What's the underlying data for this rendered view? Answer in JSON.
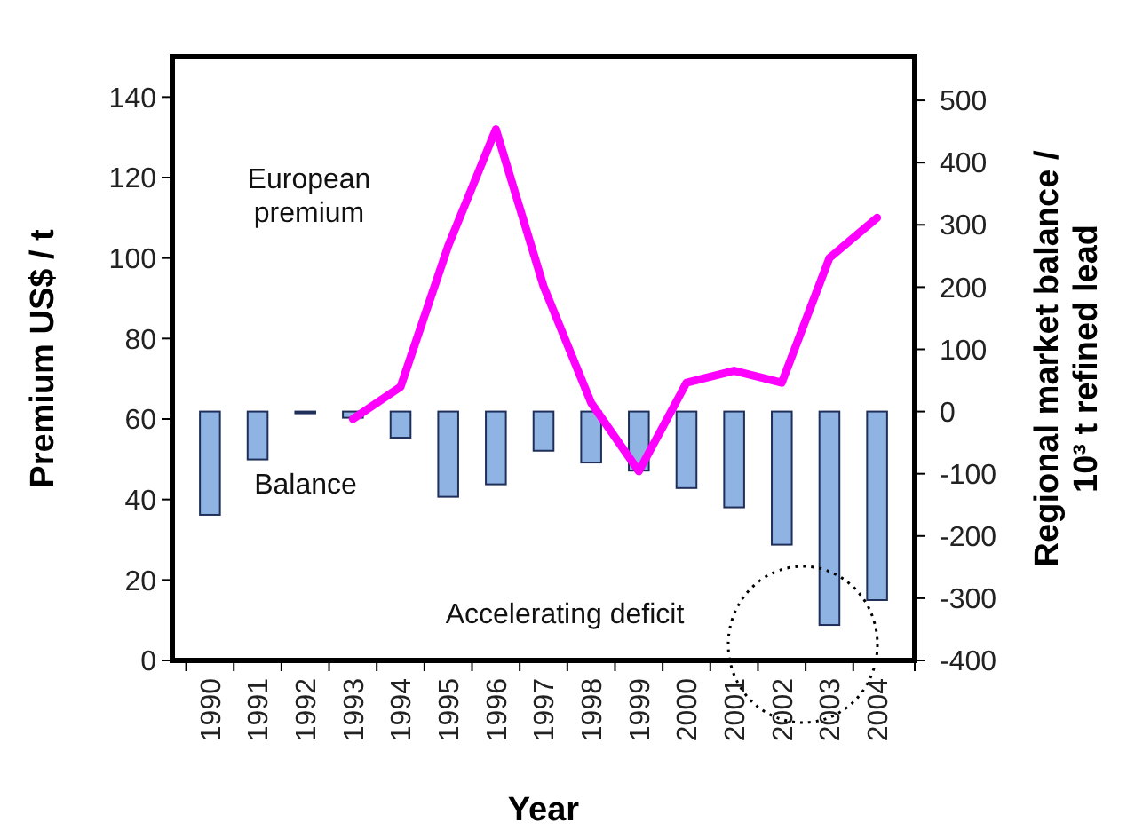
{
  "chart_data": {
    "type": "bar",
    "xlabel": "Year",
    "ylabel": "Premium US$ / t",
    "y2label": "Regional market balance / 10³ t refined lead",
    "categories": [
      "1990",
      "1991",
      "1992",
      "1993",
      "1994",
      "1995",
      "1996",
      "1997",
      "1998",
      "1999",
      "2000",
      "2001",
      "2002",
      "2003",
      "2004"
    ],
    "series": [
      {
        "axis": "y2",
        "color": "#8fb4e3",
        "values": [
          -166,
          -77,
          0,
          -10,
          -42,
          -137,
          -117,
          -63,
          -82,
          -95,
          -123,
          -154,
          -214,
          -343,
          -303
        ]
      },
      {
        "type": "line",
        "axis": "y",
        "color": "#ff00ff",
        "values": [
          null,
          null,
          null,
          60,
          68,
          103,
          132,
          93,
          64,
          47,
          69,
          72,
          69,
          100,
          110
        ]
      }
    ],
    "ylim": [
      0,
      150
    ],
    "yticks": [
      0,
      20,
      40,
      60,
      80,
      100,
      120,
      140
    ],
    "y2lim": [
      -400,
      570
    ],
    "y2ticks": [
      -400,
      -300,
      -200,
      -100,
      0,
      100,
      200,
      300,
      400,
      500
    ],
    "annotations": [
      "European premium",
      "Balance",
      "Accelerating deficit"
    ],
    "grid": false,
    "marker": "none",
    "line_style": "solid"
  }
}
